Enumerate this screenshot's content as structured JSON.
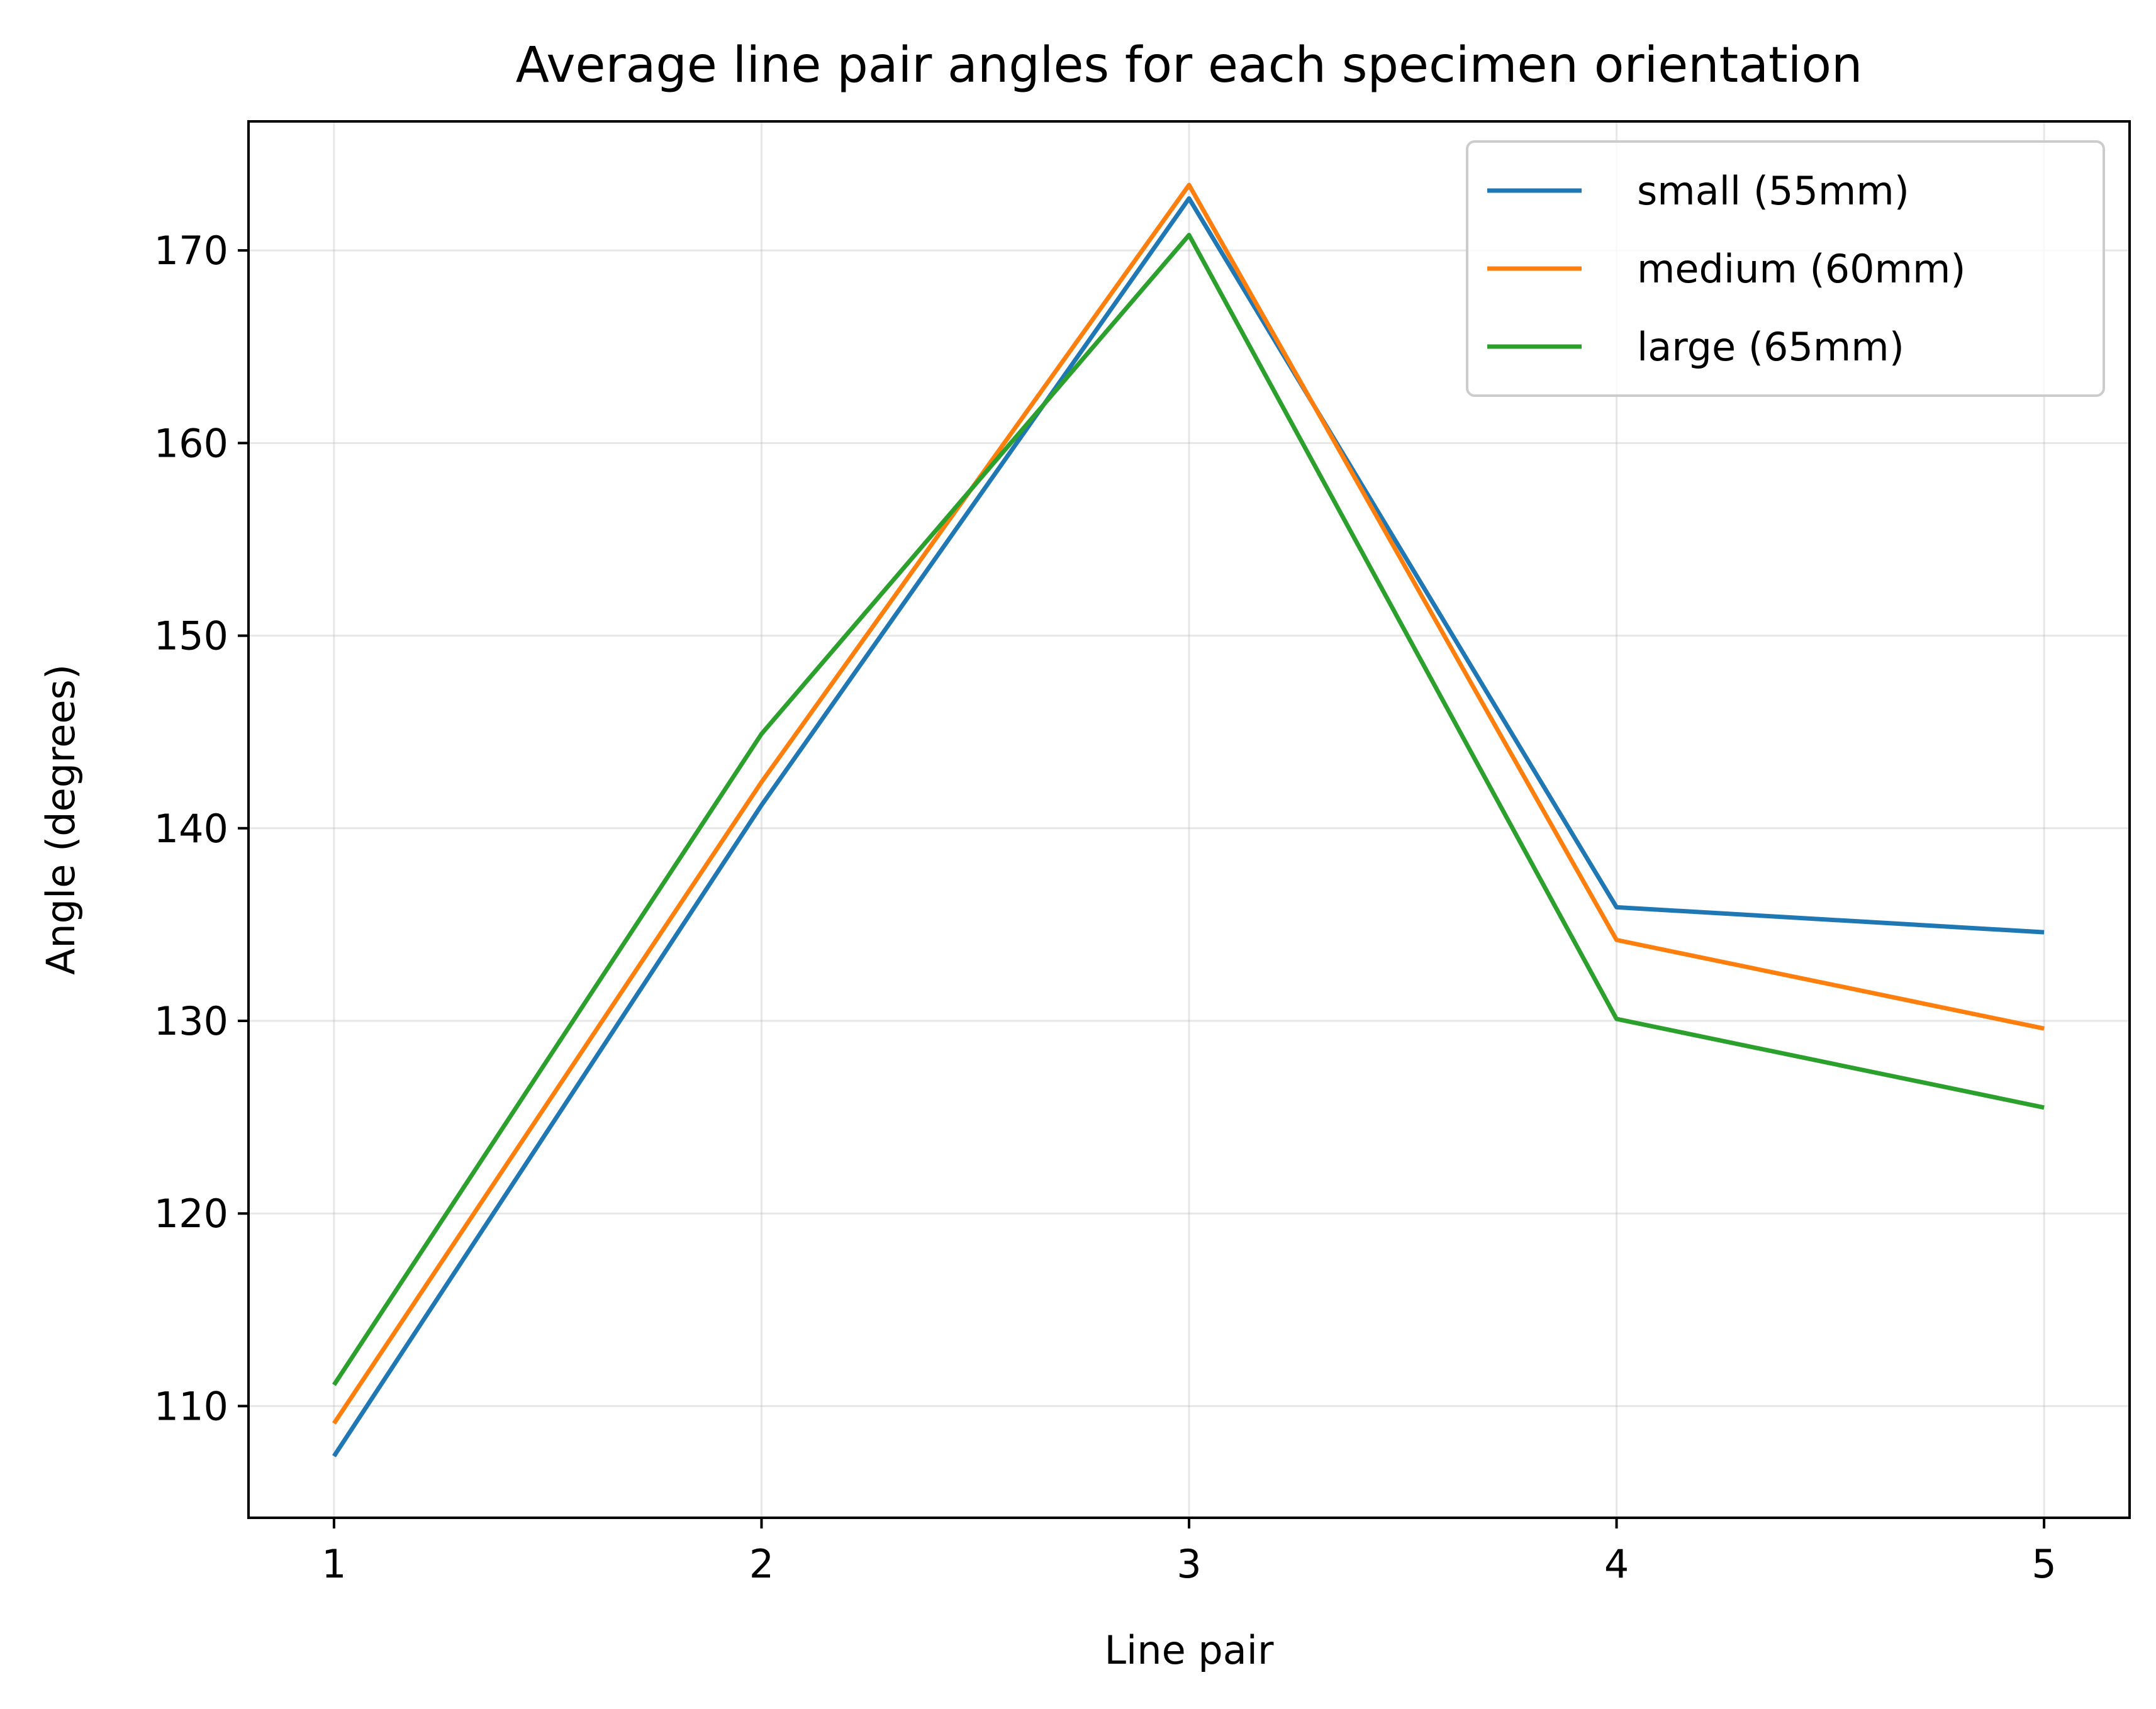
{
  "chart_data": {
    "type": "line",
    "title": "Average line pair angles for each specimen orientation",
    "xlabel": "Line pair",
    "ylabel": "Angle (degrees)",
    "x": [
      1,
      2,
      3,
      4,
      5
    ],
    "xticks": [
      "1",
      "2",
      "3",
      "4",
      "5"
    ],
    "xlim": [
      0.8,
      5.2
    ],
    "yticks": [
      "110",
      "120",
      "130",
      "140",
      "150",
      "160",
      "170"
    ],
    "ylim": [
      104.2,
      176.7
    ],
    "grid": true,
    "legend_position": "top-right",
    "series": [
      {
        "name": "small (55mm)",
        "color": "#1f77b4",
        "values": [
          107.4,
          141.2,
          172.7,
          135.9,
          134.6
        ]
      },
      {
        "name": "medium (60mm)",
        "color": "#ff7f0e",
        "values": [
          109.1,
          142.4,
          173.4,
          134.2,
          129.6
        ]
      },
      {
        "name": "large (65mm)",
        "color": "#2ca02c",
        "values": [
          111.1,
          144.9,
          170.8,
          130.1,
          125.5
        ]
      }
    ]
  }
}
